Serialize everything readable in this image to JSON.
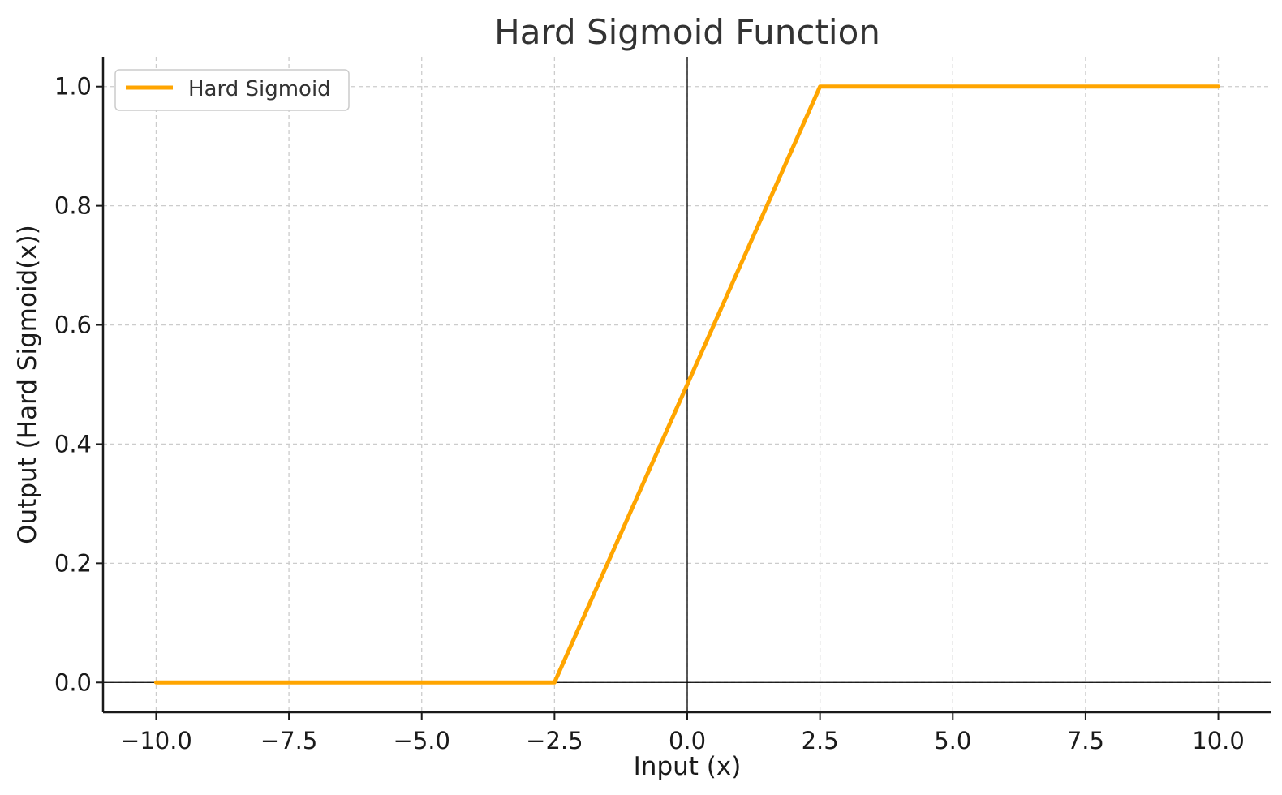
{
  "chart_data": {
    "type": "line",
    "title": "Hard Sigmoid Function",
    "xlabel": "Input (x)",
    "ylabel": "Output (Hard Sigmoid(x))",
    "xlim": [
      -11,
      11
    ],
    "ylim": [
      -0.05,
      1.05
    ],
    "xticks": [
      -10.0,
      -7.5,
      -5.0,
      -2.5,
      0.0,
      2.5,
      5.0,
      7.5,
      10.0
    ],
    "xtick_labels": [
      "−10.0",
      "−7.5",
      "−5.0",
      "−2.5",
      "0.0",
      "2.5",
      "5.0",
      "7.5",
      "10.0"
    ],
    "yticks": [
      0.0,
      0.2,
      0.4,
      0.6,
      0.8,
      1.0
    ],
    "ytick_labels": [
      "0.0",
      "0.2",
      "0.4",
      "0.6",
      "0.8",
      "1.0"
    ],
    "grid": true,
    "legend_position": "top-left",
    "reference_lines": {
      "x": 0,
      "y": 0
    },
    "series": [
      {
        "name": "Hard Sigmoid",
        "color": "#FFA500",
        "x": [
          -10.0,
          -2.5,
          2.5,
          10.0
        ],
        "y": [
          0.0,
          0.0,
          1.0,
          1.0
        ]
      }
    ]
  }
}
